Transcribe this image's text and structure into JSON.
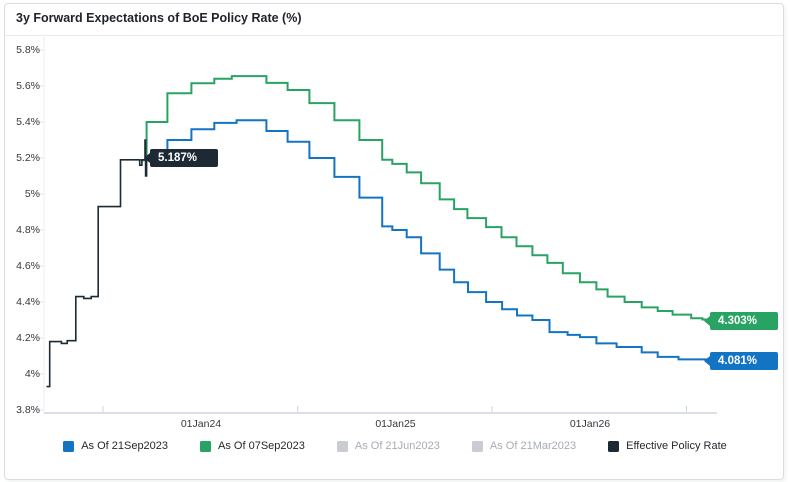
{
  "card": {
    "title": "3y Forward Expectations of BoE Policy Rate (%)"
  },
  "chart_data": {
    "type": "line",
    "subtype": "step",
    "title": "3y Forward Expectations of BoE Policy Rate (%)",
    "grid": "off",
    "legend_position": "bottom",
    "y_axis": {
      "unit": "%",
      "min": 3.8,
      "max": 5.8,
      "ticks": [
        {
          "label": "5.8%",
          "value": 5.8
        },
        {
          "label": "5.6%",
          "value": 5.6
        },
        {
          "label": "5.4%",
          "value": 5.4
        },
        {
          "label": "5.2%",
          "value": 5.2
        },
        {
          "label": "5%",
          "value": 5.0
        },
        {
          "label": "4.8%",
          "value": 4.8
        },
        {
          "label": "4.6%",
          "value": 4.6
        },
        {
          "label": "4.4%",
          "value": 4.4
        },
        {
          "label": "4.2%",
          "value": 4.2
        },
        {
          "label": "4%",
          "value": 4.0
        },
        {
          "label": "3.8%",
          "value": 3.8
        }
      ]
    },
    "x_axis": {
      "ticks": [
        {
          "label": "01Jan24",
          "date": "2024-01-01"
        },
        {
          "label": "01Jan25",
          "date": "2025-01-01"
        },
        {
          "label": "01Jan26",
          "date": "2026-01-01"
        }
      ],
      "minor_tick_dates": [
        "2023-07-01",
        "2024-07-01",
        "2025-07-01",
        "2026-07-01"
      ]
    },
    "series": [
      {
        "name": "As Of 21Sep2023",
        "color": "#1474c4",
        "active": true,
        "end_label": "4.081%",
        "end_value": 4.081,
        "end_date": "2026-09-21",
        "points": [
          [
            "2023-09-21",
            5.187
          ],
          [
            "2023-10-30",
            5.3
          ],
          [
            "2023-12-14",
            5.36
          ],
          [
            "2024-01-26",
            5.395
          ],
          [
            "2024-03-08",
            5.41
          ],
          [
            "2024-05-03",
            5.35
          ],
          [
            "2024-06-12",
            5.29
          ],
          [
            "2024-07-23",
            5.2
          ],
          [
            "2024-09-08",
            5.095
          ],
          [
            "2024-10-25",
            4.98
          ],
          [
            "2024-12-07",
            4.82
          ],
          [
            "2024-12-26",
            4.8
          ],
          [
            "2025-01-22",
            4.76
          ],
          [
            "2025-02-18",
            4.67
          ],
          [
            "2025-03-25",
            4.58
          ],
          [
            "2025-04-21",
            4.51
          ],
          [
            "2025-05-17",
            4.455
          ],
          [
            "2025-06-20",
            4.4
          ],
          [
            "2025-07-20",
            4.36
          ],
          [
            "2025-08-17",
            4.325
          ],
          [
            "2025-09-15",
            4.3
          ],
          [
            "2025-10-17",
            4.233
          ],
          [
            "2025-11-20",
            4.217
          ],
          [
            "2025-12-13",
            4.205
          ],
          [
            "2026-01-13",
            4.17
          ],
          [
            "2026-02-20",
            4.15
          ],
          [
            "2026-04-08",
            4.12
          ],
          [
            "2026-05-08",
            4.095
          ],
          [
            "2026-06-16",
            4.081
          ]
        ]
      },
      {
        "name": "As Of 07Sep2023",
        "color": "#28a363",
        "active": true,
        "end_label": "4.303%",
        "end_value": 4.303,
        "end_date": "2026-09-07",
        "points": [
          [
            "2023-09-07",
            5.187
          ],
          [
            "2023-09-21",
            5.4
          ],
          [
            "2023-10-30",
            5.56
          ],
          [
            "2023-12-14",
            5.615
          ],
          [
            "2024-01-26",
            5.64
          ],
          [
            "2024-02-28",
            5.655
          ],
          [
            "2024-05-03",
            5.617
          ],
          [
            "2024-06-12",
            5.578
          ],
          [
            "2024-07-23",
            5.505
          ],
          [
            "2024-09-08",
            5.41
          ],
          [
            "2024-10-25",
            5.3
          ],
          [
            "2024-12-07",
            5.19
          ],
          [
            "2024-12-26",
            5.167
          ],
          [
            "2025-01-22",
            5.12
          ],
          [
            "2025-02-18",
            5.06
          ],
          [
            "2025-03-25",
            4.97
          ],
          [
            "2025-04-21",
            4.916
          ],
          [
            "2025-05-16",
            4.866
          ],
          [
            "2025-06-20",
            4.816
          ],
          [
            "2025-07-19",
            4.76
          ],
          [
            "2025-08-16",
            4.71
          ],
          [
            "2025-09-15",
            4.66
          ],
          [
            "2025-10-13",
            4.617
          ],
          [
            "2025-11-11",
            4.56
          ],
          [
            "2025-12-13",
            4.51
          ],
          [
            "2026-01-13",
            4.47
          ],
          [
            "2026-02-03",
            4.43
          ],
          [
            "2026-03-07",
            4.4
          ],
          [
            "2026-04-08",
            4.37
          ],
          [
            "2026-05-08",
            4.35
          ],
          [
            "2026-06-05",
            4.33
          ],
          [
            "2026-07-10",
            4.31
          ],
          [
            "2026-07-31",
            4.303
          ]
        ]
      },
      {
        "name": "As Of 21Jun2023",
        "color": "#c9cdd3",
        "active": false,
        "points": []
      },
      {
        "name": "As Of 21Mar2023",
        "color": "#c9cdd3",
        "active": false,
        "points": []
      },
      {
        "name": "Effective Policy Rate",
        "color": "#1d2a36",
        "active": true,
        "end_label": "5.187%",
        "end_value": 5.187,
        "end_date": "2023-09-21",
        "points": [
          [
            "2023-03-17",
            3.93
          ],
          [
            "2023-03-23",
            4.18
          ],
          [
            "2023-04-14",
            4.17
          ],
          [
            "2023-04-25",
            4.185
          ],
          [
            "2023-05-11",
            4.43
          ],
          [
            "2023-05-26",
            4.42
          ],
          [
            "2023-06-09",
            4.43
          ],
          [
            "2023-06-22",
            4.93
          ],
          [
            "2023-08-03",
            5.19
          ],
          [
            "2023-09-08",
            5.16
          ],
          [
            "2023-09-12",
            5.19
          ],
          [
            "2023-09-18",
            5.3
          ],
          [
            "2023-09-19",
            5.1
          ],
          [
            "2023-09-21",
            5.187
          ]
        ]
      }
    ]
  },
  "legend": {
    "items": [
      {
        "label": "As Of 21Sep2023"
      },
      {
        "label": "As Of 07Sep2023"
      },
      {
        "label": "As Of 21Jun2023"
      },
      {
        "label": "As Of 21Mar2023"
      },
      {
        "label": "Effective Policy Rate"
      }
    ]
  }
}
